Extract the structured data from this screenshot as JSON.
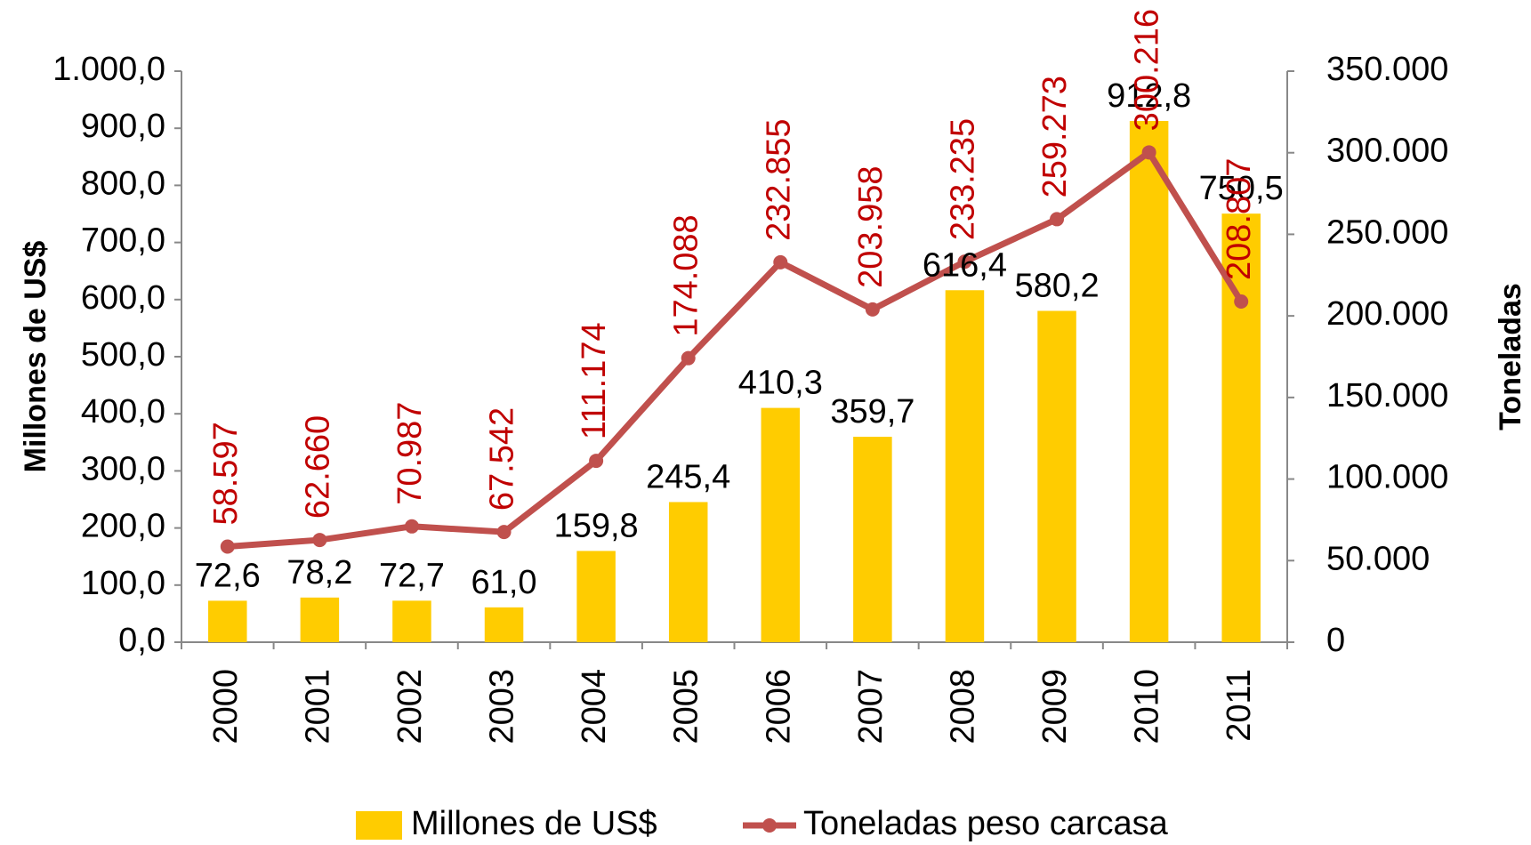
{
  "chart_data": {
    "type": "bar_line",
    "categories": [
      "2000",
      "2001",
      "2002",
      "2003",
      "2004",
      "2005",
      "2006",
      "2007",
      "2008",
      "2009",
      "2010",
      "2011"
    ],
    "series": [
      {
        "name": "Millones de US$",
        "type": "bar",
        "color": "#FFCC00",
        "values": [
          72.6,
          78.2,
          72.7,
          61.0,
          159.8,
          245.4,
          410.3,
          359.7,
          616.4,
          580.2,
          912.8,
          750.5
        ],
        "value_labels": [
          "72,6",
          "78,2",
          "72,7",
          "61,0",
          "159,8",
          "245,4",
          "410,3",
          "359,7",
          "616,4",
          "580,2",
          "912,8",
          "750,5"
        ]
      },
      {
        "name": "Toneladas peso carcasa",
        "type": "line",
        "color": "#C0504D",
        "axis": "y2",
        "values": [
          58597,
          62660,
          70987,
          67542,
          111174,
          174088,
          232855,
          203958,
          233235,
          259273,
          300216,
          208807
        ],
        "value_labels": [
          "58.597",
          "62.660",
          "70.987",
          "67.542",
          "111.174",
          "174.088",
          "232.855",
          "203.958",
          "233.235",
          "259.273",
          "300.216",
          "208.807"
        ]
      }
    ],
    "y_label": "Millones de US$",
    "y2_label": "Toneladas",
    "ylim": [
      0,
      1000
    ],
    "yticks": [
      {
        "value": 0,
        "label": "0,0"
      },
      {
        "value": 100,
        "label": "100,0"
      },
      {
        "value": 200,
        "label": "200,0"
      },
      {
        "value": 300,
        "label": "300,0"
      },
      {
        "value": 400,
        "label": "400,0"
      },
      {
        "value": 500,
        "label": "500,0"
      },
      {
        "value": 600,
        "label": "600,0"
      },
      {
        "value": 700,
        "label": "700,0"
      },
      {
        "value": 800,
        "label": "800,0"
      },
      {
        "value": 900,
        "label": "900,0"
      },
      {
        "value": 1000,
        "label": "1.000,0"
      }
    ],
    "y2lim": [
      0,
      350000
    ],
    "y2ticks": [
      0,
      {
        "value": 50000,
        "label": "50.000"
      },
      {
        "value": 100000,
        "label": "100.000"
      },
      {
        "value": 150000,
        "label": "150.000"
      },
      {
        "value": 200000,
        "label": "200.000"
      },
      {
        "value": 250000,
        "label": "250.000"
      },
      {
        "value": 300000,
        "label": "300.000"
      },
      {
        "value": 350000,
        "label": "350.000"
      }
    ],
    "legend": "bottom"
  }
}
